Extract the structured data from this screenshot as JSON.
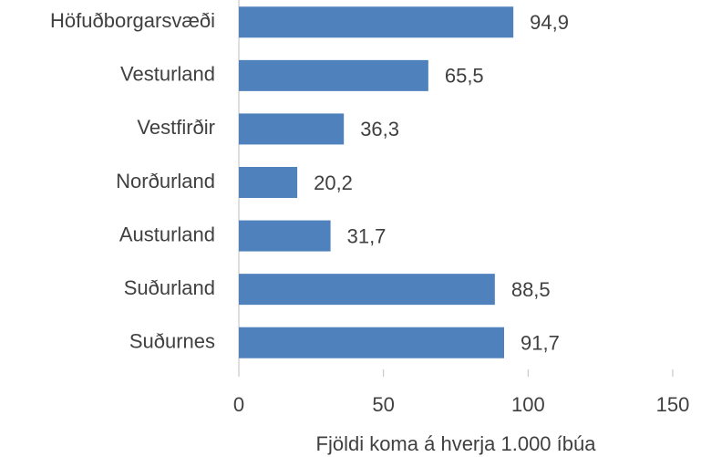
{
  "chart_data": {
    "type": "barh",
    "categories": [
      "Höfuðborgarsvæði",
      "Vesturland",
      "Vestfirðir",
      "Norðurland",
      "Austurland",
      "Suðurland",
      "Suðurnes"
    ],
    "values": [
      94.9,
      65.5,
      36.3,
      20.2,
      31.7,
      88.5,
      91.7
    ],
    "value_labels": [
      "94,9",
      "65,5",
      "36,3",
      "20,2",
      "31,7",
      "88,5",
      "91,7"
    ],
    "color": "#4f81bd",
    "xlim": [
      0,
      150
    ],
    "xticks": [
      0,
      50,
      100,
      150
    ],
    "x_label": "Fjöldi koma á hverja 1.000 íbúa"
  }
}
